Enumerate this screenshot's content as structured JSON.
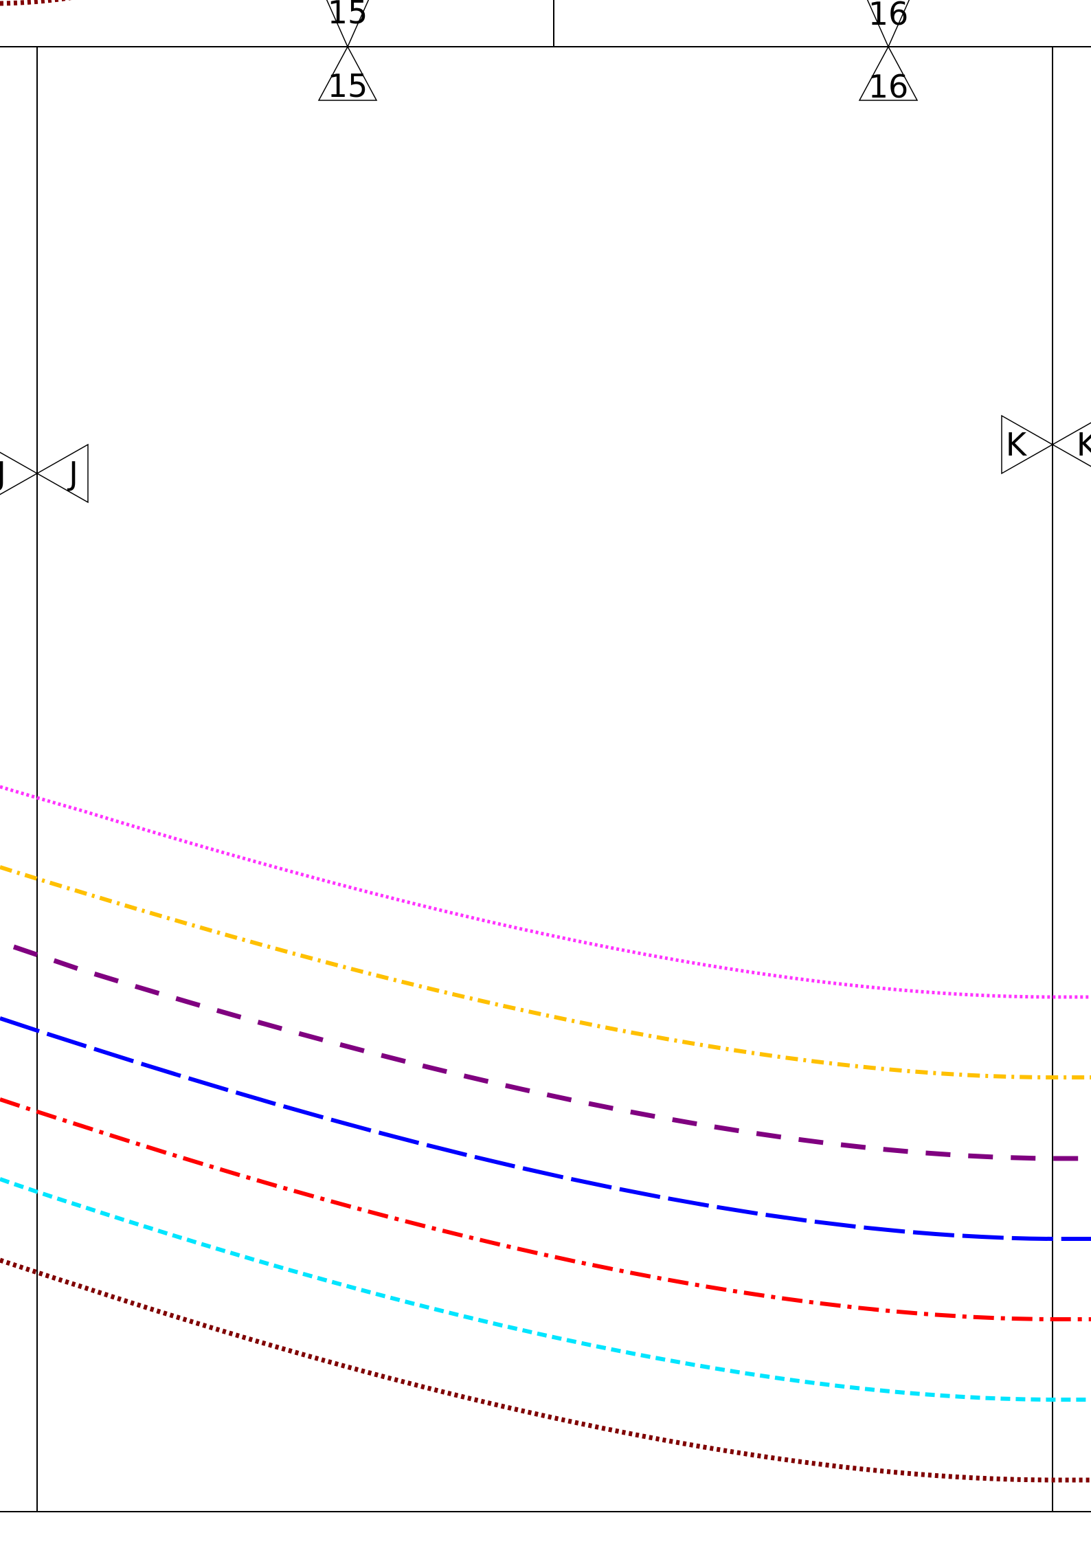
{
  "markers": {
    "top_left_outer": "15",
    "top_left_inner": "15",
    "top_right_outer": "16",
    "top_right_inner": "16",
    "left_outer": "J",
    "left_inner": "J",
    "right_inner": "K",
    "right_outer": "K"
  },
  "curve_colors": {
    "magenta_dotted": "#ff33ff",
    "gold_dashdot": "#ffc000",
    "purple_dashed": "#800080",
    "blue_longdash": "#0000ff",
    "red_dashdot": "#ff0000",
    "cyan_dashed": "#00e5ff",
    "maroon_dotted": "#800000"
  }
}
